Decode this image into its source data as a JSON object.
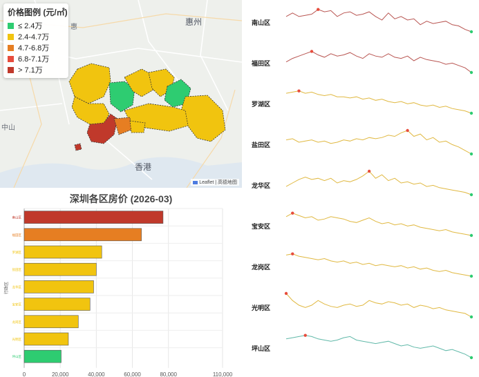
{
  "map": {
    "legend": {
      "title": "价格图例 (元/㎡)",
      "items": [
        {
          "label": "≤ 2.4万",
          "color": "#2ecc71"
        },
        {
          "label": "2.4-4.7万",
          "color": "#f1c40f"
        },
        {
          "label": "4.7-6.8万",
          "color": "#e67e22"
        },
        {
          "label": "6.8-7.1万",
          "color": "#e74c3c"
        },
        {
          "label": "> 7.1万",
          "color": "#c0392b"
        }
      ]
    },
    "place_labels": {
      "huizhou": "惠州",
      "hongkong": "香港",
      "zhongshan": "中山",
      "huizhou_area": "惠"
    },
    "attribution": "Leaflet | 高德地图"
  },
  "chart_data": {
    "type": "bar",
    "title": "深圳各区房价 (2026-03)",
    "orientation": "horizontal",
    "categories": [
      "南山区",
      "福田区",
      "罗湖区",
      "盐田区",
      "龙华区",
      "宝安区",
      "龙岗区",
      "光明区",
      "坪山区"
    ],
    "values": [
      77000,
      65000,
      43000,
      40000,
      38500,
      36500,
      30000,
      24500,
      20500
    ],
    "colors": [
      "#c0392b",
      "#e67e22",
      "#f1c40f",
      "#f1c40f",
      "#f1c40f",
      "#f1c40f",
      "#f1c40f",
      "#f1c40f",
      "#2ecc71"
    ],
    "xlim": [
      0,
      110000
    ],
    "xticks": [
      "0",
      "20,000",
      "40,000",
      "60,000",
      "80,000",
      "110,000"
    ],
    "xtick_values": [
      0,
      20000,
      40000,
      60000,
      80000,
      110000
    ],
    "ylabel": "行政区",
    "grid": true
  },
  "sparklines": {
    "items": [
      {
        "label": "南山区",
        "color": "#b85450",
        "points": [
          0.35,
          0.2,
          0.35,
          0.3,
          0.25,
          0.05,
          0.15,
          0.1,
          0.35,
          0.2,
          0.15,
          0.3,
          0.25,
          0.15,
          0.35,
          0.5,
          0.2,
          0.45,
          0.35,
          0.5,
          0.45,
          0.7,
          0.55,
          0.65,
          0.6,
          0.55,
          0.7,
          0.75,
          0.9,
          1.0
        ],
        "peak_index": 5
      },
      {
        "label": "福田区",
        "color": "#b85450",
        "points": [
          0.55,
          0.4,
          0.3,
          0.2,
          0.1,
          0.25,
          0.35,
          0.2,
          0.3,
          0.25,
          0.15,
          0.3,
          0.4,
          0.2,
          0.3,
          0.35,
          0.2,
          0.35,
          0.4,
          0.3,
          0.5,
          0.35,
          0.45,
          0.5,
          0.55,
          0.65,
          0.6,
          0.7,
          0.8,
          1.0
        ],
        "peak_index": 4
      },
      {
        "label": "罗湖区",
        "color": "#e0b840",
        "points": [
          0.15,
          0.1,
          0.05,
          0.15,
          0.1,
          0.2,
          0.25,
          0.2,
          0.3,
          0.3,
          0.35,
          0.3,
          0.4,
          0.35,
          0.45,
          0.4,
          0.5,
          0.55,
          0.5,
          0.6,
          0.55,
          0.65,
          0.7,
          0.65,
          0.75,
          0.7,
          0.8,
          0.85,
          0.9,
          1.0
        ],
        "peak_index": 2
      },
      {
        "label": "盐田区",
        "color": "#e0b840",
        "points": [
          0.4,
          0.35,
          0.5,
          0.45,
          0.4,
          0.5,
          0.45,
          0.55,
          0.5,
          0.4,
          0.45,
          0.35,
          0.4,
          0.3,
          0.35,
          0.3,
          0.2,
          0.25,
          0.1,
          0.0,
          0.25,
          0.15,
          0.4,
          0.3,
          0.5,
          0.45,
          0.6,
          0.7,
          0.85,
          1.0
        ],
        "peak_index": 19
      },
      {
        "label": "龙华区",
        "color": "#e0b840",
        "points": [
          0.65,
          0.5,
          0.35,
          0.25,
          0.35,
          0.3,
          0.4,
          0.3,
          0.5,
          0.4,
          0.45,
          0.35,
          0.2,
          0.0,
          0.3,
          0.15,
          0.4,
          0.3,
          0.5,
          0.45,
          0.55,
          0.5,
          0.65,
          0.6,
          0.7,
          0.75,
          0.8,
          0.85,
          0.9,
          1.0
        ],
        "peak_index": 13
      },
      {
        "label": "宝安区",
        "color": "#e0b840",
        "points": [
          0.2,
          0.05,
          0.15,
          0.25,
          0.2,
          0.35,
          0.3,
          0.2,
          0.25,
          0.3,
          0.4,
          0.45,
          0.35,
          0.25,
          0.4,
          0.5,
          0.45,
          0.55,
          0.5,
          0.6,
          0.55,
          0.65,
          0.7,
          0.75,
          0.8,
          0.75,
          0.85,
          0.9,
          0.95,
          1.0
        ],
        "peak_index": 1
      },
      {
        "label": "龙岗区",
        "color": "#e0b840",
        "points": [
          0.1,
          0.05,
          0.15,
          0.2,
          0.25,
          0.3,
          0.25,
          0.35,
          0.4,
          0.35,
          0.45,
          0.4,
          0.5,
          0.45,
          0.55,
          0.5,
          0.55,
          0.6,
          0.55,
          0.65,
          0.6,
          0.7,
          0.65,
          0.75,
          0.8,
          0.75,
          0.85,
          0.9,
          0.95,
          1.0
        ],
        "peak_index": 1
      },
      {
        "label": "光明区",
        "color": "#e0b840",
        "points": [
          0.0,
          0.3,
          0.5,
          0.6,
          0.5,
          0.3,
          0.45,
          0.55,
          0.6,
          0.5,
          0.45,
          0.55,
          0.5,
          0.3,
          0.4,
          0.45,
          0.35,
          0.4,
          0.5,
          0.45,
          0.6,
          0.5,
          0.55,
          0.65,
          0.6,
          0.7,
          0.75,
          0.8,
          0.85,
          1.0
        ],
        "peak_index": 0
      },
      {
        "label": "坪山区",
        "color": "#5fb8a8",
        "points": [
          0.2,
          0.15,
          0.1,
          0.05,
          0.1,
          0.2,
          0.25,
          0.3,
          0.25,
          0.15,
          0.1,
          0.25,
          0.3,
          0.35,
          0.4,
          0.35,
          0.3,
          0.4,
          0.5,
          0.45,
          0.55,
          0.6,
          0.55,
          0.5,
          0.6,
          0.7,
          0.65,
          0.75,
          0.85,
          1.0
        ],
        "peak_index": 3
      }
    ],
    "peak_color": "#e74c3c",
    "end_color": "#2ecc71"
  }
}
